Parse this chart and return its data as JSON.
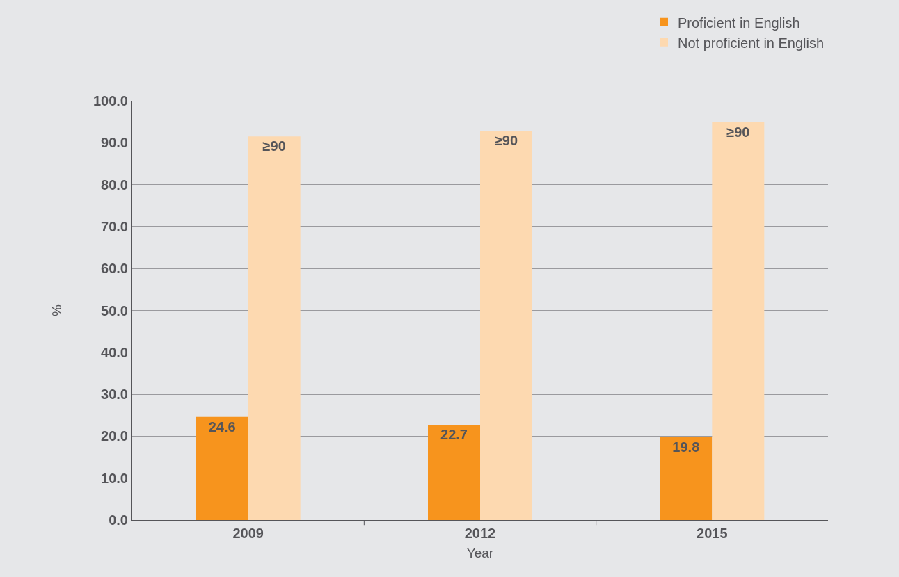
{
  "chart_data": {
    "type": "bar",
    "xlabel": "Year",
    "ylabel": "%",
    "categories": [
      "2009",
      "2012",
      "2015"
    ],
    "series": [
      {
        "name": "Proficient in English",
        "color": "#f7941d",
        "values": [
          24.6,
          22.7,
          19.8
        ],
        "value_labels": [
          "24.6",
          "22.7",
          "19.8"
        ]
      },
      {
        "name": "Not proficient in English",
        "color": "#fdd9b0",
        "values": [
          91.5,
          92.8,
          94.9
        ],
        "value_labels": [
          "≥90",
          "≥90",
          "≥90"
        ]
      }
    ],
    "ylim": [
      0,
      100
    ],
    "yticks": [
      {
        "value": 0,
        "label": "0.0"
      },
      {
        "value": 10,
        "label": "10.0"
      },
      {
        "value": 20,
        "label": "20.0"
      },
      {
        "value": 30,
        "label": "30.0"
      },
      {
        "value": 40,
        "label": "40.0"
      },
      {
        "value": 50,
        "label": "50.0"
      },
      {
        "value": 60,
        "label": "60.0"
      },
      {
        "value": 70,
        "label": "70.0"
      },
      {
        "value": 80,
        "label": "80.0"
      },
      {
        "value": 90,
        "label": "90.0"
      },
      {
        "value": 100,
        "label": "100.0"
      }
    ],
    "grid": "y",
    "legend": "top right"
  }
}
